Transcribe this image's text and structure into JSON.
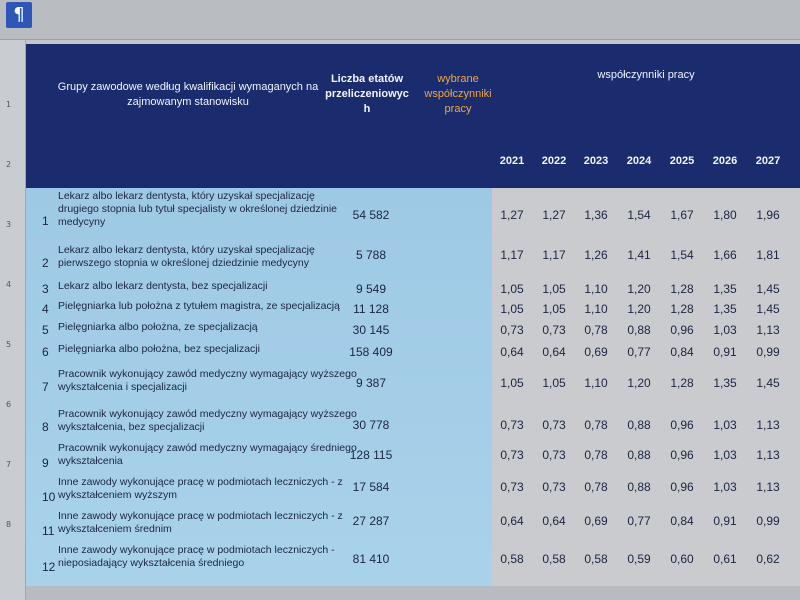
{
  "toolbar": {
    "pilcrow": "¶"
  },
  "ruler": {
    "marks": [
      "1",
      "2",
      "3",
      "4",
      "5",
      "6",
      "7",
      "8"
    ]
  },
  "table": {
    "header": {
      "group": "Grupy zawodowe według kwalifikacji wymaganych na zajmowanym stanowisku",
      "count": "Liczba etatów przeliczeniowyc h",
      "chosen": "wybrane współczynniki pracy",
      "coef": "współczynniki pracy",
      "years": [
        "2021",
        "2022",
        "2023",
        "2024",
        "2025",
        "2026",
        "2027"
      ]
    },
    "rows": [
      {
        "n": "1",
        "name": "Lekarz albo lekarz dentysta, który uzyskał specjalizację drugiego stopnia lub tytuł specjalisty w określonej dziedzinie medycyny",
        "count": "54 582",
        "v": [
          "1,27",
          "1,27",
          "1,36",
          "1,54",
          "1,67",
          "1,80",
          "1,96"
        ]
      },
      {
        "n": "2",
        "name": "Lekarz albo lekarz dentysta, który uzyskał specjalizację pierwszego stopnia w określonej dziedzinie medycyny",
        "count": "5 788",
        "v": [
          "1,17",
          "1,17",
          "1,26",
          "1,41",
          "1,54",
          "1,66",
          "1,81"
        ]
      },
      {
        "n": "3",
        "name": "Lekarz albo lekarz dentysta, bez specjalizacji",
        "count": "9 549",
        "v": [
          "1,05",
          "1,05",
          "1,10",
          "1,20",
          "1,28",
          "1,35",
          "1,45"
        ]
      },
      {
        "n": "4",
        "name": "Pielęgniarka lub położna z tytułem magistra, ze specjalizacją",
        "count": "11 128",
        "v": [
          "1,05",
          "1,05",
          "1,10",
          "1,20",
          "1,28",
          "1,35",
          "1,45"
        ]
      },
      {
        "n": "5",
        "name": "Pielęgniarka albo położna, ze specjalizacją",
        "count": "30 145",
        "v": [
          "0,73",
          "0,73",
          "0,78",
          "0,88",
          "0,96",
          "1,03",
          "1,13"
        ]
      },
      {
        "n": "6",
        "name": "Pielęgniarka albo położna, bez specjalizacji",
        "count": "158 409",
        "v": [
          "0,64",
          "0,64",
          "0,69",
          "0,77",
          "0,84",
          "0,91",
          "0,99"
        ]
      },
      {
        "n": "7",
        "name": "Pracownik wykonujący zawód medyczny wymagający wyższego wykształcenia i specjalizacji",
        "count": "9 387",
        "v": [
          "1,05",
          "1,05",
          "1,10",
          "1,20",
          "1,28",
          "1,35",
          "1,45"
        ]
      },
      {
        "n": "8",
        "name": "Pracownik wykonujący zawód medyczny wymagający wyższego wykształcenia, bez specjalizacji",
        "count": "30 778",
        "v": [
          "0,73",
          "0,73",
          "0,78",
          "0,88",
          "0,96",
          "1,03",
          "1,13"
        ]
      },
      {
        "n": "9",
        "name": "Pracownik wykonujący zawód medyczny wymagający średniego wykształcenia",
        "count": "128 115",
        "v": [
          "0,73",
          "0,73",
          "0,78",
          "0,88",
          "0,96",
          "1,03",
          "1,13"
        ]
      },
      {
        "n": "10",
        "name": "Inne zawody wykonujące pracę w podmiotach leczniczych - z wykształceniem wyższym",
        "count": "17 584",
        "v": [
          "0,73",
          "0,73",
          "0,78",
          "0,88",
          "0,96",
          "1,03",
          "1,13"
        ]
      },
      {
        "n": "11",
        "name": "Inne zawody wykonujące pracę w podmiotach leczniczych - z wykształceniem średnim",
        "count": "27 287",
        "v": [
          "0,64",
          "0,64",
          "0,69",
          "0,77",
          "0,84",
          "0,91",
          "0,99"
        ]
      },
      {
        "n": "12",
        "name": "Inne zawody wykonujące pracę w podmiotach leczniczych - nieposiadający wykształcenia średniego",
        "count": "81 410",
        "v": [
          "0,58",
          "0,58",
          "0,58",
          "0,59",
          "0,60",
          "0,61",
          "0,62"
        ]
      }
    ]
  }
}
